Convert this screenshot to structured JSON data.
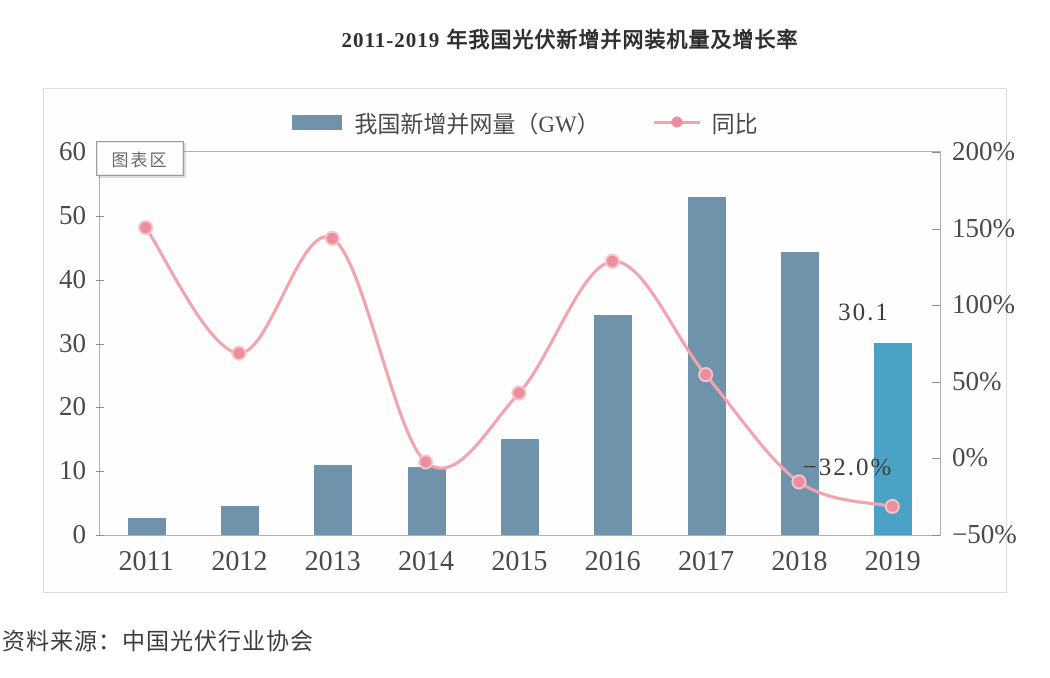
{
  "page": {
    "title": "2011-2019 年我国光伏新增并网装机量及增长率",
    "source": "资料来源：中国光伏行业协会"
  },
  "chart": {
    "plot_area_tooltip": "图表区",
    "legend": [
      {
        "label": "我国新增并网量（GW）",
        "type": "bar",
        "color": "#6e93ab"
      },
      {
        "label": "同比",
        "type": "line",
        "color": "#f2a3ae"
      }
    ]
  },
  "chart_data": {
    "type": "bar",
    "subtype": "bar+line dual axis",
    "title": "2011-2019 年我国光伏新增并网装机量及增长率",
    "categories": [
      "2011",
      "2012",
      "2013",
      "2014",
      "2015",
      "2016",
      "2017",
      "2018",
      "2019"
    ],
    "series": [
      {
        "name": "我国新增并网量（GW）",
        "type": "bar",
        "axis": "left",
        "color": "#6e93ab",
        "highlight_last_color": "#4aa3c4",
        "values": [
          2.7,
          4.5,
          11,
          10.6,
          15.1,
          34.5,
          53,
          44.3,
          30.1
        ]
      },
      {
        "name": "同比",
        "type": "line",
        "axis": "right",
        "color": "#f2a3ae",
        "marker_color": "#eb8e9d",
        "values_percent": [
          150,
          68,
          143,
          -3,
          42,
          128,
          54,
          -16,
          -32
        ]
      }
    ],
    "left_axis": {
      "range": [
        0,
        60
      ],
      "tick_labels_top_to_bottom": [
        "60",
        "50",
        "40",
        "30",
        "20",
        "10",
        "0"
      ]
    },
    "right_axis": {
      "range": [
        -50,
        200
      ],
      "tick_labels_top_to_bottom": [
        "200%",
        "150%",
        "100%",
        "50%",
        "0%",
        "−50%"
      ]
    },
    "grid": false,
    "legend_position": "top",
    "annotations": [
      {
        "text": "30.1",
        "target": "2019 bar value"
      },
      {
        "text": "−32.0%",
        "target": "2019 growth value"
      }
    ]
  }
}
